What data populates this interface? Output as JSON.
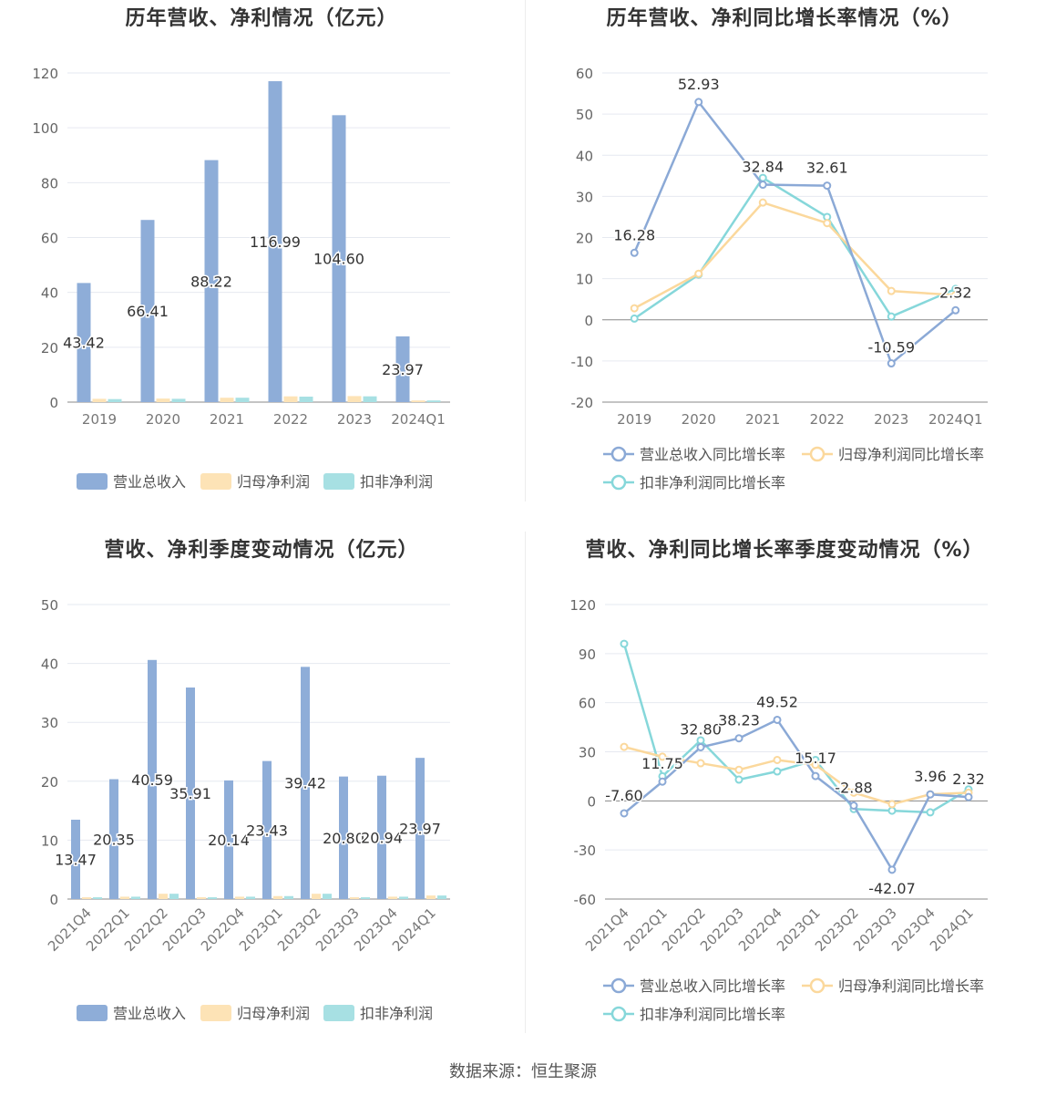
{
  "source": "数据来源：恒生聚源",
  "colors": {
    "revenue": "#8eadd8",
    "net": "#fde3b6",
    "deduct": "#a7e0e3",
    "revenue_line": "#8ba9d6",
    "net_line": "#fbd89c",
    "deduct_line": "#86d7da"
  },
  "chart_data": [
    {
      "type": "bar",
      "title": "历年营收、净利情况（亿元）",
      "categories": [
        "2019",
        "2020",
        "2021",
        "2022",
        "2023",
        "2024Q1"
      ],
      "ylim": [
        0,
        120
      ],
      "yticks": [
        0,
        20,
        40,
        60,
        80,
        100,
        120
      ],
      "series": [
        {
          "name": "营业总收入",
          "values": [
            43.42,
            66.41,
            88.22,
            116.99,
            104.6,
            23.97
          ],
          "labels": [
            "43.42",
            "66.41",
            "88.22",
            "116.99",
            "104.60",
            "23.97"
          ]
        },
        {
          "name": "归母净利润",
          "values": [
            1.2,
            1.3,
            1.6,
            2.1,
            2.2,
            0.6
          ]
        },
        {
          "name": "扣非净利润",
          "values": [
            1.1,
            1.2,
            1.6,
            2.0,
            2.1,
            0.6
          ]
        }
      ]
    },
    {
      "type": "line",
      "title": "历年营收、净利同比增长率情况（%）",
      "categories": [
        "2019",
        "2020",
        "2021",
        "2022",
        "2023",
        "2024Q1"
      ],
      "ylim": [
        -20,
        60
      ],
      "yticks": [
        -20,
        -10,
        0,
        10,
        20,
        30,
        40,
        50,
        60
      ],
      "series": [
        {
          "name": "营业总收入同比增长率",
          "values": [
            16.28,
            52.93,
            32.84,
            32.61,
            -10.59,
            2.32
          ],
          "labels": [
            "16.28",
            "52.93",
            "32.84",
            "32.61",
            "-10.59",
            "2.32"
          ]
        },
        {
          "name": "归母净利润同比增长率",
          "values": [
            2.8,
            11.2,
            28.5,
            23.5,
            7.0,
            6.0
          ]
        },
        {
          "name": "扣非净利润同比增长率",
          "values": [
            0.3,
            11.0,
            34.5,
            25.0,
            0.8,
            7.5
          ]
        }
      ]
    },
    {
      "type": "bar",
      "title": "营收、净利季度变动情况（亿元）",
      "categories": [
        "2021Q4",
        "2022Q1",
        "2022Q2",
        "2022Q3",
        "2022Q4",
        "2023Q1",
        "2023Q2",
        "2023Q3",
        "2023Q4",
        "2024Q1"
      ],
      "ylim": [
        0,
        50
      ],
      "yticks": [
        0,
        10,
        20,
        30,
        40,
        50
      ],
      "series": [
        {
          "name": "营业总收入",
          "values": [
            13.47,
            20.35,
            40.59,
            35.91,
            20.14,
            23.43,
            39.42,
            20.8,
            20.94,
            23.97
          ],
          "labels": [
            "13.47",
            "20.35",
            "40.59",
            "35.91",
            "20.14",
            "23.43",
            "39.42",
            "20.80",
            "20.94",
            "23.97"
          ]
        },
        {
          "name": "归母净利润",
          "values": [
            0.3,
            0.4,
            0.9,
            0.3,
            0.4,
            0.5,
            0.9,
            0.3,
            0.4,
            0.6
          ]
        },
        {
          "name": "扣非净利润",
          "values": [
            0.3,
            0.4,
            0.9,
            0.3,
            0.4,
            0.5,
            0.9,
            0.3,
            0.4,
            0.6
          ]
        }
      ]
    },
    {
      "type": "line",
      "title": "营收、净利同比增长率季度变动情况（%）",
      "categories": [
        "2021Q4",
        "2022Q1",
        "2022Q2",
        "2022Q3",
        "2022Q4",
        "2023Q1",
        "2023Q2",
        "2023Q3",
        "2023Q4",
        "2024Q1"
      ],
      "ylim": [
        -60,
        120
      ],
      "yticks": [
        -60,
        -30,
        0,
        30,
        60,
        90,
        120
      ],
      "series": [
        {
          "name": "营业总收入同比增长率",
          "values": [
            -7.6,
            11.75,
            32.8,
            38.23,
            49.52,
            15.17,
            -2.88,
            -42.07,
            3.96,
            2.32
          ],
          "labels": [
            "-7.60",
            "11.75",
            "32.80",
            "38.23",
            "49.52",
            "15.17",
            "-2.88",
            "-42.07",
            "3.96",
            "2.32"
          ]
        },
        {
          "name": "归母净利润同比增长率",
          "values": [
            33.0,
            27.0,
            23.0,
            19.0,
            25.0,
            22.0,
            5.0,
            -2.0,
            4.0,
            5.0
          ]
        },
        {
          "name": "扣非净利润同比增长率",
          "values": [
            96.0,
            15.0,
            37.0,
            13.0,
            18.0,
            25.0,
            -5.0,
            -6.0,
            -7.0,
            7.0
          ]
        }
      ]
    }
  ]
}
